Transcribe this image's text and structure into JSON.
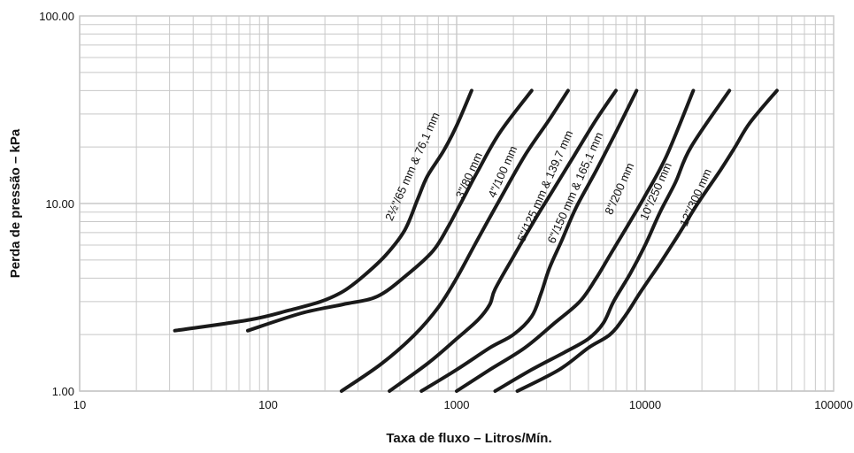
{
  "chart_data": {
    "type": "line",
    "title": "",
    "xlabel": "Taxa de fluxo – Litros/Mín.",
    "ylabel": "Perda de pressão – kPa",
    "x_scale": "log",
    "y_scale": "log",
    "xlim": [
      10,
      100000
    ],
    "ylim": [
      1,
      100
    ],
    "x_ticks": [
      "10",
      "100",
      "1000",
      "10000",
      "100000"
    ],
    "y_ticks": [
      "1.00",
      "10.00",
      "100.00"
    ],
    "grid": true,
    "line_color": "#1a1a1a",
    "grid_color": "#c8c8c8",
    "series": [
      {
        "name": "2½\"/65 mm & 76,1 mm",
        "points": [
          [
            32,
            2.1
          ],
          [
            80,
            2.4
          ],
          [
            130,
            2.7
          ],
          [
            190,
            3.0
          ],
          [
            250,
            3.4
          ],
          [
            320,
            4.1
          ],
          [
            420,
            5.3
          ],
          [
            530,
            7.2
          ],
          [
            620,
            10.5
          ],
          [
            700,
            14.0
          ],
          [
            850,
            19.0
          ],
          [
            1000,
            26.0
          ],
          [
            1200,
            40.0
          ]
        ]
      },
      {
        "name": "3\"/80 mm",
        "points": [
          [
            78,
            2.1
          ],
          [
            150,
            2.6
          ],
          [
            250,
            2.9
          ],
          [
            380,
            3.2
          ],
          [
            550,
            4.2
          ],
          [
            750,
            5.6
          ],
          [
            900,
            7.5
          ],
          [
            1050,
            10.0
          ],
          [
            1300,
            15.0
          ],
          [
            1700,
            24.0
          ],
          [
            2500,
            40.0
          ]
        ]
      },
      {
        "name": "4\"/100 mm",
        "points": [
          [
            245,
            1.0
          ],
          [
            400,
            1.4
          ],
          [
            600,
            2.0
          ],
          [
            800,
            2.8
          ],
          [
            1000,
            4.0
          ],
          [
            1300,
            6.5
          ],
          [
            1650,
            10.0
          ],
          [
            2300,
            18.0
          ],
          [
            3100,
            28.0
          ],
          [
            3900,
            40.0
          ]
        ]
      },
      {
        "name": "5\"/125 mm & 139,7 mm",
        "points": [
          [
            440,
            1.0
          ],
          [
            700,
            1.4
          ],
          [
            1000,
            1.9
          ],
          [
            1300,
            2.4
          ],
          [
            1500,
            2.9
          ],
          [
            1600,
            3.5
          ],
          [
            2000,
            5.2
          ],
          [
            2600,
            8.2
          ],
          [
            3200,
            11.5
          ],
          [
            4200,
            18.0
          ],
          [
            5500,
            28.0
          ],
          [
            7000,
            40.0
          ]
        ]
      },
      {
        "name": "6\"/150 mm & 165,1 mm",
        "points": [
          [
            650,
            1.0
          ],
          [
            1000,
            1.3
          ],
          [
            1500,
            1.7
          ],
          [
            2000,
            2.0
          ],
          [
            2500,
            2.5
          ],
          [
            2800,
            3.3
          ],
          [
            3100,
            4.5
          ],
          [
            3600,
            6.3
          ],
          [
            4300,
            9.5
          ],
          [
            5500,
            15.0
          ],
          [
            7000,
            24.0
          ],
          [
            9000,
            40.0
          ]
        ]
      },
      {
        "name": "8\"/200 mm",
        "points": [
          [
            1000,
            1.0
          ],
          [
            1500,
            1.3
          ],
          [
            2300,
            1.7
          ],
          [
            3300,
            2.3
          ],
          [
            4500,
            3.0
          ],
          [
            5500,
            4.0
          ],
          [
            6500,
            5.3
          ],
          [
            8000,
            7.5
          ],
          [
            10000,
            11.0
          ],
          [
            13000,
            18.0
          ],
          [
            18000,
            40.0
          ]
        ]
      },
      {
        "name": "10\"/250 mm",
        "points": [
          [
            1600,
            1.0
          ],
          [
            2500,
            1.3
          ],
          [
            3700,
            1.6
          ],
          [
            5000,
            1.9
          ],
          [
            6000,
            2.3
          ],
          [
            6800,
            3.0
          ],
          [
            8300,
            4.2
          ],
          [
            10000,
            6.0
          ],
          [
            12000,
            9.0
          ],
          [
            14500,
            13.0
          ],
          [
            17500,
            20.0
          ],
          [
            28000,
            40.0
          ]
        ]
      },
      {
        "name": "12\"/300 mm",
        "points": [
          [
            2100,
            1.0
          ],
          [
            3500,
            1.3
          ],
          [
            5000,
            1.7
          ],
          [
            6500,
            2.0
          ],
          [
            7800,
            2.5
          ],
          [
            9500,
            3.4
          ],
          [
            12000,
            4.8
          ],
          [
            15000,
            6.8
          ],
          [
            19000,
            10.0
          ],
          [
            25000,
            15.0
          ],
          [
            30000,
            20.0
          ],
          [
            36000,
            27.0
          ],
          [
            50000,
            40.0
          ]
        ]
      }
    ]
  }
}
